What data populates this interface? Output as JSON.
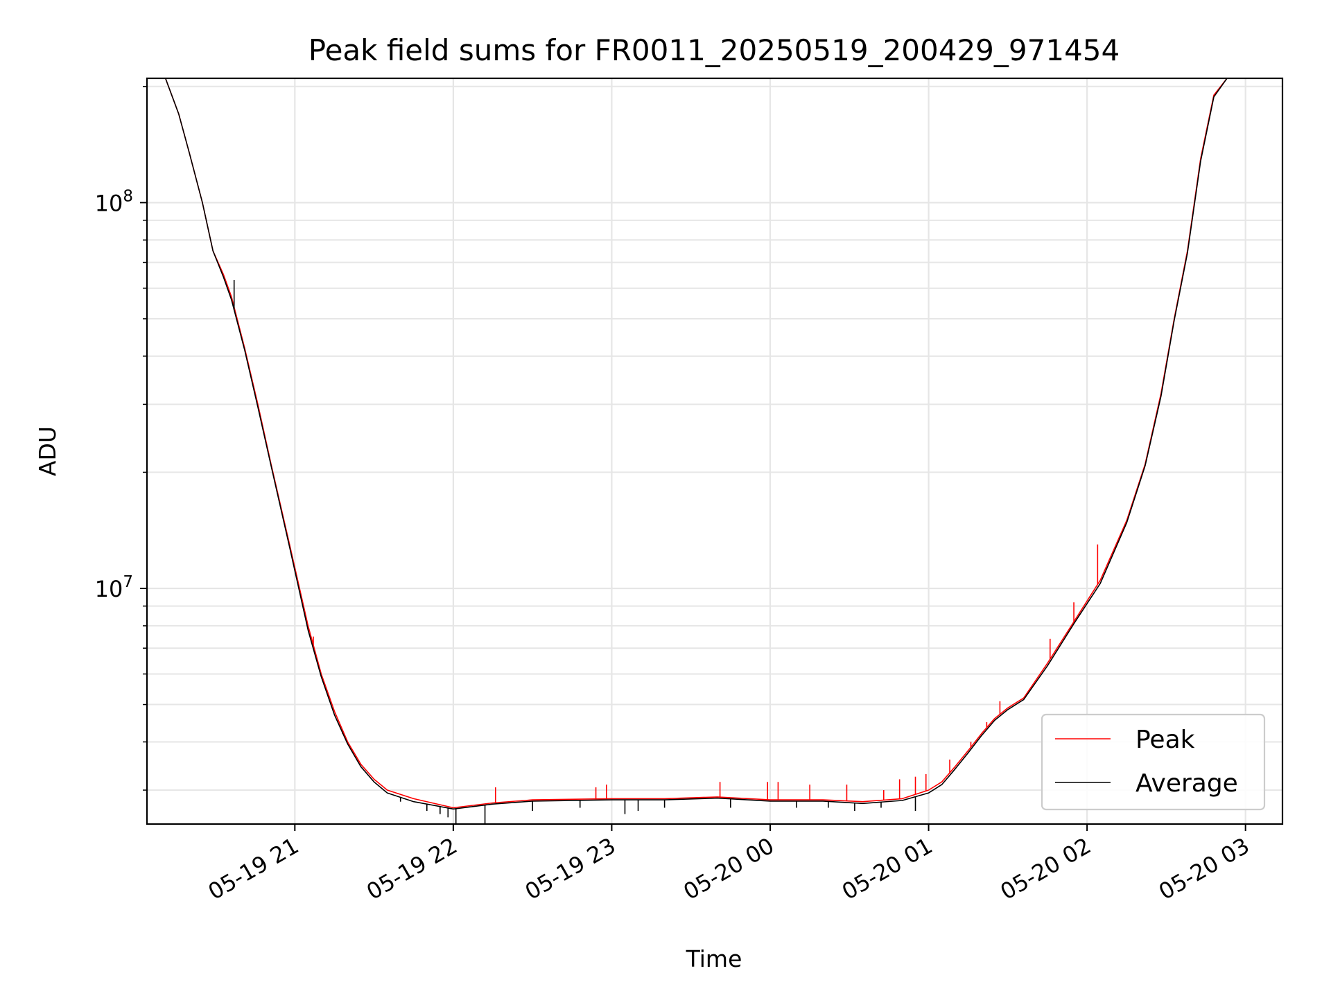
{
  "chart_data": {
    "type": "line",
    "title": "Peak field sums for FR0011_20250519_200429_971454",
    "xlabel": "Time",
    "ylabel": "ADU",
    "y_scale": "log",
    "ylim": [
      2450000,
      210000000
    ],
    "xlim": [
      "2025-05-19 20:04",
      "2025-05-20 03:14"
    ],
    "x_ticks": [
      {
        "time": "2025-05-19 21:00",
        "label": "05-19 21"
      },
      {
        "time": "2025-05-19 22:00",
        "label": "05-19 22"
      },
      {
        "time": "2025-05-19 23:00",
        "label": "05-19 23"
      },
      {
        "time": "2025-05-20 00:00",
        "label": "05-20 00"
      },
      {
        "time": "2025-05-20 01:00",
        "label": "05-20 01"
      },
      {
        "time": "2025-05-20 02:00",
        "label": "05-20 02"
      },
      {
        "time": "2025-05-20 03:00",
        "label": "05-20 03"
      }
    ],
    "y_ticks": [
      {
        "value": 10000000,
        "base": "10",
        "exp": "7"
      },
      {
        "value": 100000000,
        "base": "10",
        "exp": "8"
      }
    ],
    "grid": true,
    "legend_position": "lower right",
    "series": [
      {
        "name": "Peak",
        "color": "#ff0000",
        "x": [
          "2025-05-19 20:11",
          "2025-05-19 20:16",
          "2025-05-19 20:20",
          "2025-05-19 20:25",
          "2025-05-19 20:29",
          "2025-05-19 20:33",
          "2025-05-19 20:36",
          "2025-05-19 20:41",
          "2025-05-19 20:46",
          "2025-05-19 20:51",
          "2025-05-19 20:58",
          "2025-05-19 21:05",
          "2025-05-19 21:10",
          "2025-05-19 21:15",
          "2025-05-19 21:20",
          "2025-05-19 21:25",
          "2025-05-19 21:30",
          "2025-05-19 21:35",
          "2025-05-19 21:45",
          "2025-05-19 22:00",
          "2025-05-19 22:15",
          "2025-05-19 22:30",
          "2025-05-19 23:00",
          "2025-05-19 23:20",
          "2025-05-19 23:40",
          "2025-05-20 00:00",
          "2025-05-20 00:20",
          "2025-05-20 00:35",
          "2025-05-20 00:50",
          "2025-05-20 01:00",
          "2025-05-20 01:05",
          "2025-05-20 01:10",
          "2025-05-20 01:15",
          "2025-05-20 01:20",
          "2025-05-20 01:25",
          "2025-05-20 01:30",
          "2025-05-20 01:36",
          "2025-05-20 01:45",
          "2025-05-20 01:55",
          "2025-05-20 02:05",
          "2025-05-20 02:15",
          "2025-05-20 02:22",
          "2025-05-20 02:28",
          "2025-05-20 02:33",
          "2025-05-20 02:38",
          "2025-05-20 02:43",
          "2025-05-20 02:48",
          "2025-05-20 02:53"
        ],
        "y": [
          210000000,
          170000000,
          135000000,
          100000000,
          75000000,
          65000000,
          57000000,
          42000000,
          30000000,
          21000000,
          13000000,
          8000000,
          6000000,
          4800000,
          4000000,
          3500000,
          3200000,
          3000000,
          2850000,
          2700000,
          2780000,
          2830000,
          2850000,
          2850000,
          2880000,
          2830000,
          2830000,
          2800000,
          2850000,
          3000000,
          3150000,
          3450000,
          3800000,
          4200000,
          4600000,
          4900000,
          5200000,
          6400000,
          8200000,
          10500000,
          15000000,
          21000000,
          32000000,
          50000000,
          75000000,
          130000000,
          190000000,
          210000000
        ],
        "spikes": [
          {
            "x": "2025-05-19 21:07",
            "y": 7500000
          },
          {
            "x": "2025-05-19 21:14",
            "y": 5000000
          },
          {
            "x": "2025-05-19 21:18",
            "y": 4200000
          },
          {
            "x": "2025-05-19 21:21",
            "y": 3900000
          },
          {
            "x": "2025-05-19 22:16",
            "y": 3050000
          },
          {
            "x": "2025-05-19 22:54",
            "y": 3050000
          },
          {
            "x": "2025-05-19 22:58",
            "y": 3100000
          },
          {
            "x": "2025-05-19 23:41",
            "y": 3150000
          },
          {
            "x": "2025-05-19 23:59",
            "y": 3150000
          },
          {
            "x": "2025-05-20 00:03",
            "y": 3150000
          },
          {
            "x": "2025-05-20 00:15",
            "y": 3100000
          },
          {
            "x": "2025-05-20 00:29",
            "y": 3100000
          },
          {
            "x": "2025-05-20 00:43",
            "y": 3000000
          },
          {
            "x": "2025-05-20 00:49",
            "y": 3200000
          },
          {
            "x": "2025-05-20 00:55",
            "y": 3250000
          },
          {
            "x": "2025-05-20 00:59",
            "y": 3300000
          },
          {
            "x": "2025-05-20 01:08",
            "y": 3600000
          },
          {
            "x": "2025-05-20 01:16",
            "y": 4000000
          },
          {
            "x": "2025-05-20 01:22",
            "y": 4500000
          },
          {
            "x": "2025-05-20 01:27",
            "y": 5100000
          },
          {
            "x": "2025-05-20 01:46",
            "y": 7400000
          },
          {
            "x": "2025-05-20 01:55",
            "y": 9200000
          },
          {
            "x": "2025-05-20 02:04",
            "y": 13000000
          }
        ]
      },
      {
        "name": "Average",
        "color": "#000000",
        "x": [
          "2025-05-19 20:11",
          "2025-05-19 20:16",
          "2025-05-19 20:20",
          "2025-05-19 20:25",
          "2025-05-19 20:29",
          "2025-05-19 20:33",
          "2025-05-19 20:36",
          "2025-05-19 20:41",
          "2025-05-19 20:46",
          "2025-05-19 20:51",
          "2025-05-19 20:58",
          "2025-05-19 21:05",
          "2025-05-19 21:10",
          "2025-05-19 21:15",
          "2025-05-19 21:20",
          "2025-05-19 21:25",
          "2025-05-19 21:30",
          "2025-05-19 21:35",
          "2025-05-19 21:45",
          "2025-05-19 22:00",
          "2025-05-19 22:15",
          "2025-05-19 22:30",
          "2025-05-19 23:00",
          "2025-05-19 23:20",
          "2025-05-19 23:40",
          "2025-05-20 00:00",
          "2025-05-20 00:20",
          "2025-05-20 00:35",
          "2025-05-20 00:50",
          "2025-05-20 01:00",
          "2025-05-20 01:05",
          "2025-05-20 01:10",
          "2025-05-20 01:15",
          "2025-05-20 01:20",
          "2025-05-20 01:25",
          "2025-05-20 01:30",
          "2025-05-20 01:36",
          "2025-05-20 01:45",
          "2025-05-20 01:55",
          "2025-05-20 02:05",
          "2025-05-20 02:15",
          "2025-05-20 02:22",
          "2025-05-20 02:28",
          "2025-05-20 02:33",
          "2025-05-20 02:38",
          "2025-05-20 02:43",
          "2025-05-20 02:48",
          "2025-05-20 02:53"
        ],
        "y": [
          210000000,
          170000000,
          135000000,
          100000000,
          75000000,
          64000000,
          56000000,
          41500000,
          29500000,
          20800000,
          12800000,
          7800000,
          5900000,
          4700000,
          3950000,
          3450000,
          3150000,
          2950000,
          2800000,
          2680000,
          2760000,
          2810000,
          2830000,
          2830000,
          2860000,
          2810000,
          2810000,
          2770000,
          2820000,
          2950000,
          3100000,
          3400000,
          3750000,
          4150000,
          4550000,
          4850000,
          5150000,
          6300000,
          8100000,
          10300000,
          14800000,
          20800000,
          31500000,
          49500000,
          74000000,
          128000000,
          188000000,
          210000000
        ],
        "dips": [
          {
            "x": "2025-05-19 20:37",
            "y": 63000000
          },
          {
            "x": "2025-05-19 21:40",
            "y": 2800000
          },
          {
            "x": "2025-05-19 21:50",
            "y": 2650000
          },
          {
            "x": "2025-05-19 21:55",
            "y": 2600000
          },
          {
            "x": "2025-05-19 21:58",
            "y": 2550000
          },
          {
            "x": "2025-05-19 22:01",
            "y": 2450000
          },
          {
            "x": "2025-05-19 22:12",
            "y": 2450000
          },
          {
            "x": "2025-05-19 22:30",
            "y": 2650000
          },
          {
            "x": "2025-05-19 22:48",
            "y": 2700000
          },
          {
            "x": "2025-05-19 23:05",
            "y": 2600000
          },
          {
            "x": "2025-05-19 23:10",
            "y": 2650000
          },
          {
            "x": "2025-05-19 23:20",
            "y": 2700000
          },
          {
            "x": "2025-05-19 23:45",
            "y": 2700000
          },
          {
            "x": "2025-05-20 00:10",
            "y": 2700000
          },
          {
            "x": "2025-05-20 00:22",
            "y": 2700000
          },
          {
            "x": "2025-05-20 00:32",
            "y": 2650000
          },
          {
            "x": "2025-05-20 00:42",
            "y": 2700000
          },
          {
            "x": "2025-05-20 00:55",
            "y": 2650000
          }
        ]
      }
    ]
  }
}
